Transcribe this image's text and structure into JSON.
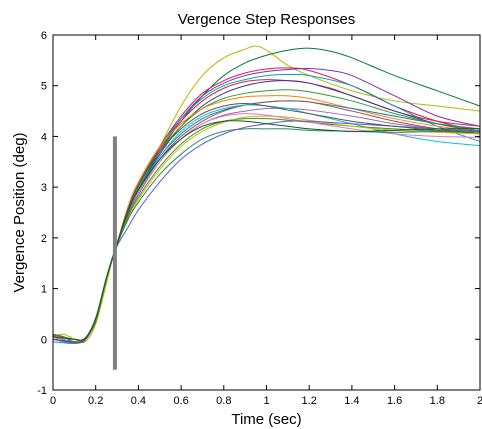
{
  "chart_data": {
    "type": "line",
    "title": "Vergence Step Responses",
    "xlabel": "Time (sec)",
    "ylabel": "Vergence Position (deg)",
    "xlim": [
      0,
      2
    ],
    "ylim": [
      -1,
      6
    ],
    "xticks": [
      0,
      0.2,
      0.4,
      0.6,
      0.8,
      1,
      1.2,
      1.4,
      1.6,
      1.8,
      2
    ],
    "xtick_labels": [
      "0",
      "0.2",
      "0.4",
      "0.6",
      "0.8",
      "1",
      "1.2",
      "1.4",
      "1.6",
      "1.8",
      "2"
    ],
    "yticks": [
      -1,
      0,
      1,
      2,
      3,
      4,
      5,
      6
    ],
    "ytick_labels": [
      "-1",
      "0",
      "1",
      "2",
      "3",
      "4",
      "5",
      "6"
    ],
    "grid": false,
    "legend": false,
    "vertical_marker": {
      "x": 0.29,
      "y_range": [
        -0.6,
        4.0
      ],
      "color": "#808080"
    },
    "series": [
      {
        "color": "#b5b800",
        "x": [
          0,
          0.05,
          0.1,
          0.15,
          0.2,
          0.25,
          0.29,
          0.35,
          0.4,
          0.5,
          0.6,
          0.7,
          0.8,
          0.9,
          0.95,
          1.0,
          1.1,
          1.2,
          1.4,
          1.6,
          1.8,
          2.0
        ],
        "y": [
          0.05,
          0.1,
          0.0,
          -0.05,
          0.3,
          1.1,
          1.75,
          2.5,
          3.0,
          3.8,
          4.6,
          5.2,
          5.55,
          5.72,
          5.78,
          5.7,
          5.4,
          5.2,
          4.9,
          4.7,
          4.6,
          4.5
        ]
      },
      {
        "color": "#007a3d",
        "x": [
          0,
          0.05,
          0.1,
          0.15,
          0.2,
          0.25,
          0.29,
          0.35,
          0.4,
          0.5,
          0.6,
          0.7,
          0.8,
          0.9,
          1.0,
          1.1,
          1.2,
          1.3,
          1.4,
          1.6,
          1.8,
          2.0
        ],
        "y": [
          0.1,
          0.05,
          -0.05,
          0.0,
          0.35,
          1.15,
          1.75,
          2.5,
          2.95,
          3.7,
          4.3,
          4.8,
          5.2,
          5.45,
          5.6,
          5.7,
          5.74,
          5.68,
          5.55,
          5.2,
          4.9,
          4.6
        ]
      },
      {
        "color": "#e6194b",
        "x": [
          0,
          0.1,
          0.15,
          0.2,
          0.25,
          0.29,
          0.35,
          0.4,
          0.5,
          0.6,
          0.7,
          0.8,
          0.9,
          1.0,
          1.1,
          1.2,
          1.4,
          1.6,
          1.8,
          2.0
        ],
        "y": [
          0.0,
          -0.05,
          0.0,
          0.4,
          1.2,
          1.75,
          2.55,
          3.05,
          3.8,
          4.4,
          4.85,
          5.1,
          5.25,
          5.33,
          5.35,
          5.3,
          5.0,
          4.6,
          4.3,
          4.1
        ]
      },
      {
        "color": "#7b2fbe",
        "x": [
          0,
          0.1,
          0.15,
          0.2,
          0.25,
          0.29,
          0.35,
          0.4,
          0.5,
          0.6,
          0.7,
          0.8,
          0.9,
          1.0,
          1.1,
          1.2,
          1.3,
          1.4,
          1.6,
          1.8,
          2.0
        ],
        "y": [
          0.05,
          -0.05,
          -0.02,
          0.38,
          1.2,
          1.75,
          2.5,
          3.0,
          3.75,
          4.35,
          4.8,
          5.05,
          5.2,
          5.28,
          5.32,
          5.34,
          5.3,
          5.2,
          4.8,
          4.4,
          4.2
        ]
      },
      {
        "color": "#00a0c8",
        "x": [
          0,
          0.1,
          0.15,
          0.2,
          0.25,
          0.29,
          0.35,
          0.4,
          0.5,
          0.6,
          0.7,
          0.8,
          0.9,
          1.0,
          1.1,
          1.2,
          1.4,
          1.6,
          1.8,
          2.0
        ],
        "y": [
          -0.05,
          -0.08,
          0.0,
          0.4,
          1.2,
          1.75,
          2.55,
          3.05,
          3.8,
          4.35,
          4.75,
          5.0,
          5.12,
          5.2,
          5.22,
          5.2,
          5.0,
          4.6,
          4.2,
          3.9
        ]
      },
      {
        "color": "#d62728",
        "x": [
          0,
          0.1,
          0.15,
          0.2,
          0.25,
          0.29,
          0.35,
          0.4,
          0.5,
          0.6,
          0.7,
          0.8,
          0.9,
          1.0,
          1.1,
          1.2,
          1.3,
          1.4,
          1.6,
          1.8,
          2.0
        ],
        "y": [
          0.08,
          0.0,
          0.0,
          0.38,
          1.18,
          1.75,
          2.55,
          3.05,
          3.75,
          4.3,
          4.7,
          4.95,
          5.08,
          5.12,
          5.1,
          5.05,
          4.95,
          4.8,
          4.5,
          4.3,
          4.2
        ]
      },
      {
        "color": "#3a3a9a",
        "x": [
          0,
          0.1,
          0.15,
          0.2,
          0.25,
          0.29,
          0.35,
          0.4,
          0.5,
          0.6,
          0.7,
          0.8,
          0.9,
          1.0,
          1.1,
          1.2,
          1.4,
          1.6,
          1.8,
          2.0
        ],
        "y": [
          0.0,
          -0.06,
          0.0,
          0.4,
          1.2,
          1.75,
          2.45,
          2.95,
          3.65,
          4.2,
          4.6,
          4.85,
          5.0,
          5.08,
          5.1,
          5.05,
          4.8,
          4.5,
          4.25,
          4.1
        ]
      },
      {
        "color": "#2ca02c",
        "x": [
          0,
          0.1,
          0.15,
          0.2,
          0.25,
          0.29,
          0.35,
          0.4,
          0.5,
          0.6,
          0.7,
          0.8,
          0.9,
          1.0,
          1.1,
          1.2,
          1.4,
          1.6,
          1.8,
          2.0
        ],
        "y": [
          0.1,
          0.0,
          0.02,
          0.42,
          1.22,
          1.75,
          2.5,
          3.0,
          3.7,
          4.2,
          4.55,
          4.75,
          4.85,
          4.9,
          4.92,
          4.88,
          4.7,
          4.45,
          4.25,
          4.1
        ]
      },
      {
        "color": "#ff7f0e",
        "x": [
          0,
          0.1,
          0.15,
          0.2,
          0.25,
          0.29,
          0.35,
          0.4,
          0.5,
          0.6,
          0.7,
          0.8,
          0.9,
          1.0,
          1.1,
          1.2,
          1.4,
          1.6,
          1.8,
          2.0
        ],
        "y": [
          0.0,
          -0.05,
          0.0,
          0.4,
          1.2,
          1.75,
          2.6,
          3.1,
          3.8,
          4.25,
          4.55,
          4.7,
          4.78,
          4.8,
          4.8,
          4.75,
          4.55,
          4.35,
          4.2,
          4.1
        ]
      },
      {
        "color": "#1f77b4",
        "x": [
          0,
          0.1,
          0.15,
          0.2,
          0.25,
          0.29,
          0.35,
          0.4,
          0.5,
          0.6,
          0.7,
          0.8,
          0.9,
          1.0,
          1.1,
          1.2,
          1.4,
          1.6,
          1.8,
          2.0
        ],
        "y": [
          0.05,
          -0.05,
          0.0,
          0.38,
          1.18,
          1.75,
          2.5,
          2.95,
          3.6,
          4.05,
          4.35,
          4.52,
          4.62,
          4.68,
          4.7,
          4.68,
          4.55,
          4.4,
          4.25,
          4.15
        ]
      },
      {
        "color": "#8c564b",
        "x": [
          0,
          0.1,
          0.15,
          0.2,
          0.25,
          0.29,
          0.35,
          0.4,
          0.5,
          0.6,
          0.7,
          0.8,
          0.9,
          1.0,
          1.1,
          1.2,
          1.4,
          1.6,
          1.8,
          2.0
        ],
        "y": [
          0.0,
          -0.05,
          0.0,
          0.4,
          1.2,
          1.75,
          2.45,
          2.9,
          3.55,
          4.0,
          4.3,
          4.5,
          4.62,
          4.68,
          4.7,
          4.68,
          4.5,
          4.3,
          4.15,
          4.05
        ]
      },
      {
        "color": "#9467bd",
        "x": [
          0,
          0.1,
          0.15,
          0.2,
          0.25,
          0.29,
          0.35,
          0.4,
          0.5,
          0.6,
          0.7,
          0.8,
          0.9,
          1.0,
          1.1,
          1.2,
          1.4,
          1.6,
          1.8,
          2.0
        ],
        "y": [
          0.05,
          -0.05,
          0.02,
          0.4,
          1.2,
          1.75,
          2.4,
          2.85,
          3.5,
          3.95,
          4.25,
          4.42,
          4.5,
          4.55,
          4.55,
          4.52,
          4.4,
          4.25,
          4.15,
          4.1
        ]
      },
      {
        "color": "#17becf",
        "x": [
          0,
          0.1,
          0.15,
          0.2,
          0.25,
          0.29,
          0.35,
          0.4,
          0.5,
          0.6,
          0.7,
          0.8,
          0.9,
          1.0,
          1.1,
          1.2,
          1.4,
          1.6,
          1.8,
          2.0
        ],
        "y": [
          0.0,
          -0.05,
          0.0,
          0.4,
          1.2,
          1.75,
          2.5,
          2.95,
          3.6,
          4.1,
          4.4,
          4.55,
          4.62,
          4.6,
          4.55,
          4.45,
          4.25,
          4.05,
          3.9,
          3.82
        ]
      },
      {
        "color": "#4a8a2a",
        "x": [
          0,
          0.1,
          0.15,
          0.2,
          0.25,
          0.29,
          0.35,
          0.4,
          0.5,
          0.6,
          0.7,
          0.8,
          0.9,
          1.0,
          1.1,
          1.2,
          1.4,
          1.6,
          1.8,
          2.0
        ],
        "y": [
          0.1,
          0.0,
          0.02,
          0.42,
          1.2,
          1.75,
          2.4,
          2.8,
          3.4,
          3.85,
          4.15,
          4.3,
          4.35,
          4.35,
          4.32,
          4.28,
          4.2,
          4.15,
          4.1,
          4.05
        ]
      },
      {
        "color": "#c0c000",
        "x": [
          0,
          0.1,
          0.15,
          0.2,
          0.25,
          0.29,
          0.35,
          0.4,
          0.5,
          0.6,
          0.7,
          0.8,
          0.9,
          1.0,
          1.1,
          1.2,
          1.4,
          1.6,
          1.8,
          2.0
        ],
        "y": [
          0.0,
          -0.05,
          0.0,
          0.38,
          1.15,
          1.75,
          2.35,
          2.75,
          3.35,
          3.8,
          4.1,
          4.28,
          4.38,
          4.4,
          4.38,
          4.32,
          4.2,
          4.12,
          4.08,
          4.05
        ]
      },
      {
        "color": "#e377c2",
        "x": [
          0,
          0.1,
          0.15,
          0.2,
          0.25,
          0.29,
          0.35,
          0.4,
          0.5,
          0.6,
          0.7,
          0.8,
          0.9,
          1.0,
          1.1,
          1.2,
          1.4,
          1.6,
          1.8,
          2.0
        ],
        "y": [
          0.05,
          -0.05,
          0.0,
          0.4,
          1.2,
          1.75,
          2.5,
          2.9,
          3.5,
          3.95,
          4.25,
          4.4,
          4.45,
          4.42,
          4.35,
          4.28,
          4.15,
          4.05,
          4.0,
          3.98
        ]
      },
      {
        "color": "#2e8b57",
        "x": [
          0,
          0.1,
          0.15,
          0.2,
          0.25,
          0.29,
          0.35,
          0.4,
          0.5,
          0.6,
          0.7,
          0.8,
          0.9,
          1.0,
          1.1,
          1.2,
          1.4,
          1.6,
          1.8,
          2.0
        ],
        "y": [
          0.0,
          -0.05,
          0.0,
          0.4,
          1.2,
          1.75,
          2.35,
          2.7,
          3.25,
          3.65,
          3.95,
          4.1,
          4.15,
          4.15,
          4.15,
          4.12,
          4.1,
          4.08,
          4.1,
          4.12
        ]
      },
      {
        "color": "#5b5bd6",
        "x": [
          0,
          0.1,
          0.15,
          0.2,
          0.25,
          0.29,
          0.35,
          0.4,
          0.5,
          0.6,
          0.7,
          0.8,
          0.9,
          1.0,
          1.1,
          1.2,
          1.4,
          1.6,
          1.8,
          2.0
        ],
        "y": [
          0.0,
          -0.08,
          0.0,
          0.4,
          1.2,
          1.75,
          2.2,
          2.55,
          3.1,
          3.55,
          3.85,
          4.05,
          4.18,
          4.25,
          4.3,
          4.3,
          4.25,
          4.2,
          4.15,
          4.1
        ]
      },
      {
        "color": "#555555",
        "x": [
          0,
          0.1,
          0.15,
          0.2,
          0.25,
          0.29,
          0.35,
          0.4,
          0.5,
          0.6,
          0.7,
          0.8,
          0.9,
          1.0,
          1.1,
          1.2,
          1.4,
          1.6,
          1.8,
          2.0
        ],
        "y": [
          0.0,
          -0.05,
          0.0,
          0.4,
          1.2,
          1.75,
          2.55,
          3.05,
          3.7,
          4.15,
          4.45,
          4.6,
          4.65,
          4.6,
          4.52,
          4.45,
          4.3,
          4.2,
          4.12,
          4.08
        ]
      },
      {
        "color": "#0a5a1f",
        "x": [
          0,
          0.1,
          0.15,
          0.2,
          0.25,
          0.29,
          0.35,
          0.4,
          0.5,
          0.6,
          0.7,
          0.8,
          0.9,
          1.0,
          1.1,
          1.2,
          1.4,
          1.6,
          1.8,
          2.0
        ],
        "y": [
          0.05,
          0.0,
          0.02,
          0.4,
          1.2,
          1.75,
          2.5,
          2.95,
          3.55,
          3.95,
          4.2,
          4.3,
          4.3,
          4.25,
          4.2,
          4.15,
          4.1,
          4.12,
          4.15,
          4.15
        ]
      }
    ]
  }
}
